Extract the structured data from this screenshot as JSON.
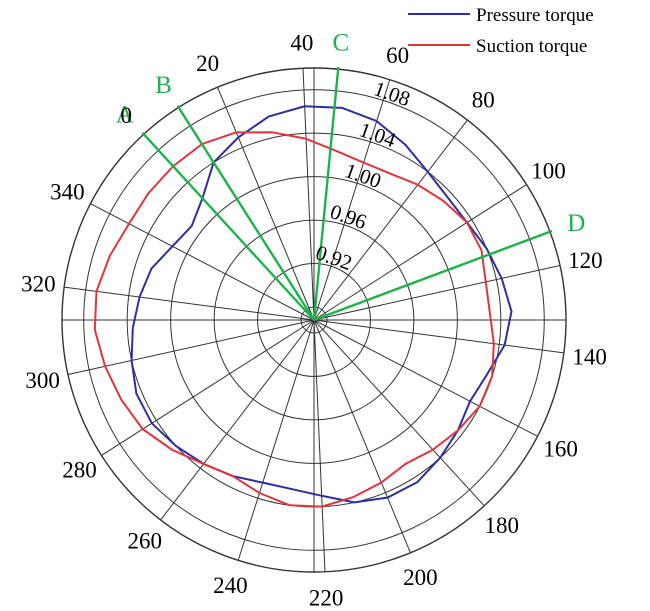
{
  "chart_data": {
    "type": "polar-line",
    "title": "",
    "angle_direction": "clockwise",
    "zero_angle_label": "0",
    "angular_ticks": [
      "0",
      "20",
      "40",
      "60",
      "80",
      "100",
      "120",
      "140",
      "160",
      "180",
      "200",
      "220",
      "240",
      "260",
      "280",
      "300",
      "320",
      "340"
    ],
    "angular_tick_values": [
      0,
      20,
      40,
      60,
      80,
      100,
      120,
      140,
      160,
      180,
      200,
      220,
      240,
      260,
      280,
      300,
      320,
      340
    ],
    "radial_range": [
      0.88,
      1.1
    ],
    "radial_ticks": [
      "0.92",
      "0.96",
      "1.00",
      "1.04",
      "1.08"
    ],
    "radial_tick_values": [
      0.92,
      0.96,
      1.0,
      1.04,
      1.08
    ],
    "series": [
      {
        "name": "Pressure torque",
        "color": "#2b2fa0",
        "angles": [
          0,
          10,
          20,
          30,
          40,
          50,
          60,
          70,
          80,
          90,
          100,
          110,
          120,
          130,
          140,
          150,
          160,
          170,
          180,
          190,
          200,
          210,
          220,
          230,
          240,
          250,
          260,
          270,
          280,
          290,
          300,
          310,
          320,
          330,
          340,
          350
        ],
        "values": [
          1.02,
          1.04,
          1.05,
          1.06,
          1.065,
          1.065,
          1.06,
          1.05,
          1.04,
          1.035,
          1.035,
          1.04,
          1.045,
          1.05,
          1.045,
          1.035,
          1.03,
          1.035,
          1.04,
          1.045,
          1.045,
          1.04,
          1.03,
          1.025,
          1.025,
          1.03,
          1.035,
          1.04,
          1.045,
          1.045,
          1.04,
          1.035,
          1.03,
          1.025,
          1.015,
          1.01
        ]
      },
      {
        "name": "Suction torque",
        "color": "#e0353d",
        "angles": [
          0,
          10,
          20,
          30,
          40,
          50,
          60,
          70,
          80,
          90,
          100,
          110,
          120,
          130,
          140,
          150,
          160,
          170,
          180,
          190,
          200,
          210,
          220,
          230,
          240,
          250,
          260,
          270,
          280,
          290,
          300,
          310,
          320,
          330,
          340,
          350
        ],
        "values": [
          1.06,
          1.06,
          1.055,
          1.045,
          1.035,
          1.025,
          1.02,
          1.02,
          1.025,
          1.03,
          1.035,
          1.035,
          1.03,
          1.03,
          1.035,
          1.04,
          1.04,
          1.035,
          1.03,
          1.025,
          1.03,
          1.035,
          1.04,
          1.04,
          1.035,
          1.03,
          1.035,
          1.045,
          1.055,
          1.06,
          1.065,
          1.07,
          1.07,
          1.065,
          1.06,
          1.06
        ]
      }
    ],
    "reference_lines": [
      {
        "label": "A",
        "angle": 0
      },
      {
        "label": "B",
        "angle": 10
      },
      {
        "label": "C",
        "angle": 48
      },
      {
        "label": "D",
        "angle": 112
      }
    ],
    "legend": {
      "placement": "top-right",
      "entries": [
        "Pressure torque",
        "Suction torque"
      ]
    },
    "grid": true
  }
}
